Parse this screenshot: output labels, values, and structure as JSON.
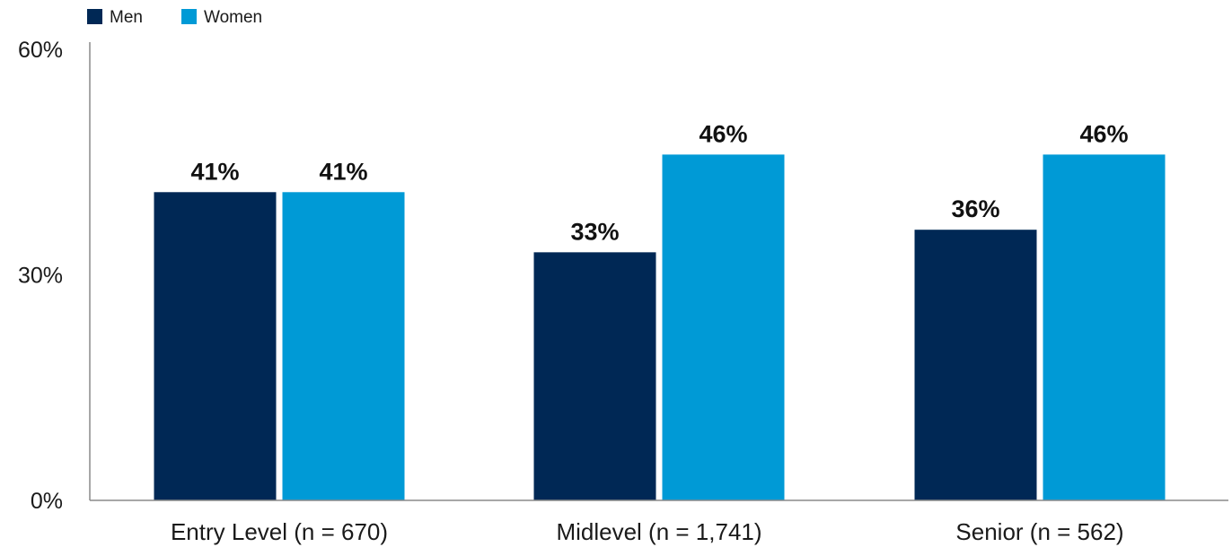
{
  "chart_data": {
    "type": "bar",
    "categories": [
      "Entry Level (n = 670)",
      "Midlevel (n = 1,741)",
      "Senior (n = 562)"
    ],
    "series": [
      {
        "name": "Men",
        "values": [
          41,
          33,
          36
        ],
        "labels": [
          "41%",
          "33%",
          "36%"
        ],
        "color": "#002855"
      },
      {
        "name": "Women",
        "values": [
          41,
          46,
          46
        ],
        "labels": [
          "41%",
          "46%",
          "46%"
        ],
        "color": "#009ad6"
      }
    ],
    "ylim": [
      0,
      60
    ],
    "yticks": [
      0,
      30,
      60
    ],
    "ytick_labels": [
      "0%",
      "30%",
      "60%"
    ],
    "legend_position": "top-left",
    "grid": false
  }
}
